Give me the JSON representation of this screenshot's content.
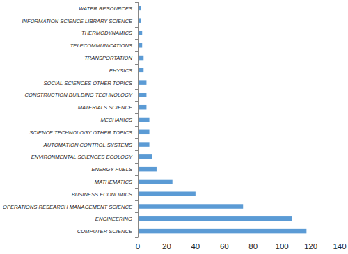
{
  "chart_data": {
    "type": "bar",
    "orientation": "horizontal",
    "categories": [
      "WATER RESOURCES",
      "INFORMATION SCIENCE LIBRARY SCIENCE",
      "THERMODYNAMICS",
      "TELECOMMUNICATIONS",
      "TRANSPORTATION",
      "PHYSICS",
      "SOCIAL SCIENCES OTHER TOPICS",
      "CONSTRUCTION BUILDING TECHNOLOGY",
      "MATERIALS SCIENCE",
      "MECHANICS",
      "SCIENCE TECHNOLOGY OTHER TOPICS",
      "AUTOMATION CONTROL SYSTEMS",
      "ENVIRONMENTAL SCIENCES ECOLOGY",
      "ENERGY FUELS",
      "MATHEMATICS",
      "BUSINESS ECONOMICS",
      "OPERATIONS RESEARCH MANAGEMENT SCIENCE",
      "ENGINEERING",
      "COMPUTER SCIENCE"
    ],
    "values": [
      2,
      2,
      3,
      3,
      4,
      4,
      6,
      6,
      6,
      8,
      8,
      8,
      10,
      13,
      24,
      40,
      73,
      107,
      117
    ],
    "color": "#5b9bd5",
    "xlim": [
      0,
      140
    ],
    "xticks": [
      0,
      20,
      40,
      60,
      80,
      100,
      120,
      140
    ],
    "grid": false
  }
}
